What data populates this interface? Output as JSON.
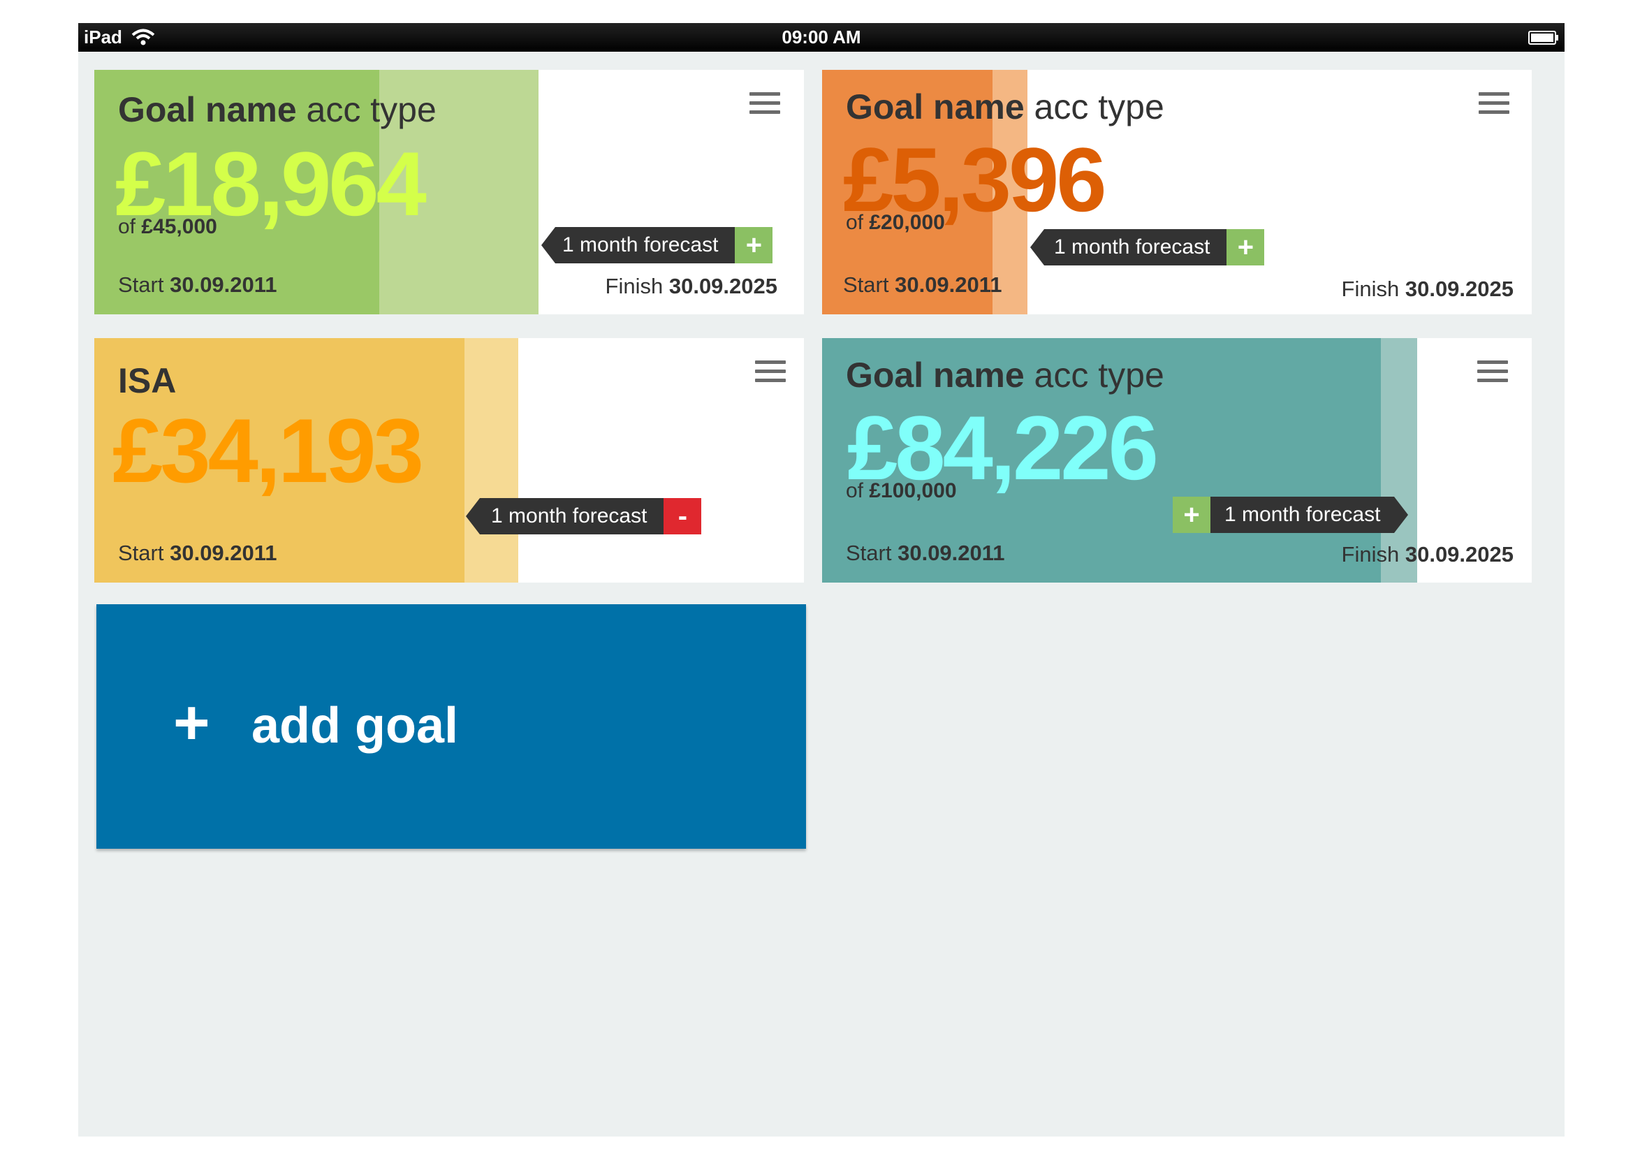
{
  "statusbar": {
    "carrier": "iPad",
    "time": "09:00 AM"
  },
  "goals": [
    {
      "name": "Goal name",
      "acc_type": "acc type",
      "amount": "£18,964",
      "of_label": "of",
      "target": "£45,000",
      "start_label": "Start",
      "start_date": "30.09.2011",
      "finish_label": "Finish",
      "finish_date": "30.09.2025",
      "forecast_label": "1 month forecast",
      "forecast_action": "+",
      "colors": {
        "fill": "#9ac866",
        "fill_light": "#bdd894",
        "amount": "#d4ff4a",
        "action": "#8bc063"
      }
    },
    {
      "name": "Goal name",
      "acc_type": "acc type",
      "amount": "£5,396",
      "of_label": "of",
      "target": "£20,000",
      "start_label": "Start",
      "start_date": "30.09.2011",
      "finish_label": "Finish",
      "finish_date": "30.09.2025",
      "forecast_label": "1 month forecast",
      "forecast_action": "+",
      "colors": {
        "fill": "#ec8a43",
        "fill_light": "#f4b783",
        "amount": "#dd5f05",
        "action": "#8bc063"
      }
    },
    {
      "name": "ISA",
      "amount": "£34,193",
      "start_label": "Start",
      "start_date": "30.09.2011",
      "forecast_label": "1 month forecast",
      "forecast_action": "-",
      "colors": {
        "fill": "#f0c55c",
        "fill_light": "#f6da94",
        "amount": "#ff9c00",
        "action": "#e0282f"
      }
    },
    {
      "name": "Goal name",
      "acc_type": "acc type",
      "amount": "£84,226",
      "of_label": "of",
      "target": "£100,000",
      "start_label": "Start",
      "start_date": "30.09.2011",
      "finish_label": "Finish",
      "finish_date": "30.09.2025",
      "forecast_label": "1 month forecast",
      "forecast_action": "+",
      "colors": {
        "fill": "#62a9a4",
        "fill_light": "#9ac5bf",
        "amount": "#80fffa",
        "action": "#8bc063"
      }
    }
  ],
  "add_goal": {
    "icon": "+",
    "label": "add goal"
  }
}
